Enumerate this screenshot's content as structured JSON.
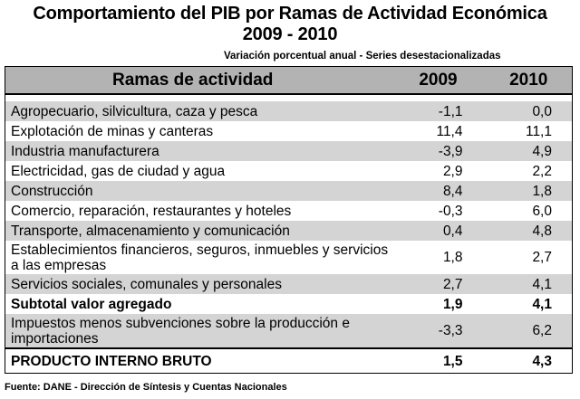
{
  "title_line1": "Comportamiento del PIB por Ramas de Actividad Económica",
  "title_line2": "2009 - 2010",
  "subtitle": "Variación porcentual anual - Series desestacionalizadas",
  "header": {
    "col1": "Ramas de actividad",
    "col2": "2009",
    "col3": "2010"
  },
  "rows": [
    {
      "name": "Agropecuario, silvicultura, caza y pesca",
      "y2009": "-1,1",
      "y2010": "0,0"
    },
    {
      "name": "Explotación de minas y canteras",
      "y2009": "11,4",
      "y2010": "11,1"
    },
    {
      "name": "Industria manufacturera",
      "y2009": "-3,9",
      "y2010": "4,9"
    },
    {
      "name": "Electricidad, gas de ciudad y agua",
      "y2009": "2,9",
      "y2010": "2,2"
    },
    {
      "name": "Construcción",
      "y2009": "8,4",
      "y2010": "1,8"
    },
    {
      "name": "Comercio, reparación, restaurantes y hoteles",
      "y2009": "-0,3",
      "y2010": "6,0"
    },
    {
      "name": "Transporte, almacenamiento y comunicación",
      "y2009": "0,4",
      "y2010": "4,8"
    },
    {
      "name": "Establecimientos financieros, seguros, inmuebles y servicios a las empresas",
      "y2009": "1,8",
      "y2010": "2,7"
    },
    {
      "name": "Servicios sociales, comunales y personales",
      "y2009": "2,7",
      "y2010": "4,1"
    },
    {
      "name": "Subtotal valor agregado",
      "y2009": "1,9",
      "y2010": "4,1"
    },
    {
      "name": "Impuestos menos subvenciones sobre la producción e importaciones",
      "y2009": "-3,3",
      "y2010": "6,2"
    },
    {
      "name": "PRODUCTO INTERNO BRUTO",
      "y2009": "1,5",
      "y2010": "4,3"
    }
  ],
  "source": "Fuente: DANE - Dirección de Síntesis y Cuentas Nacionales",
  "colors": {
    "header_bg": "#b3b3b3",
    "row_shade": "#d4d4d4",
    "text": "#000000"
  }
}
